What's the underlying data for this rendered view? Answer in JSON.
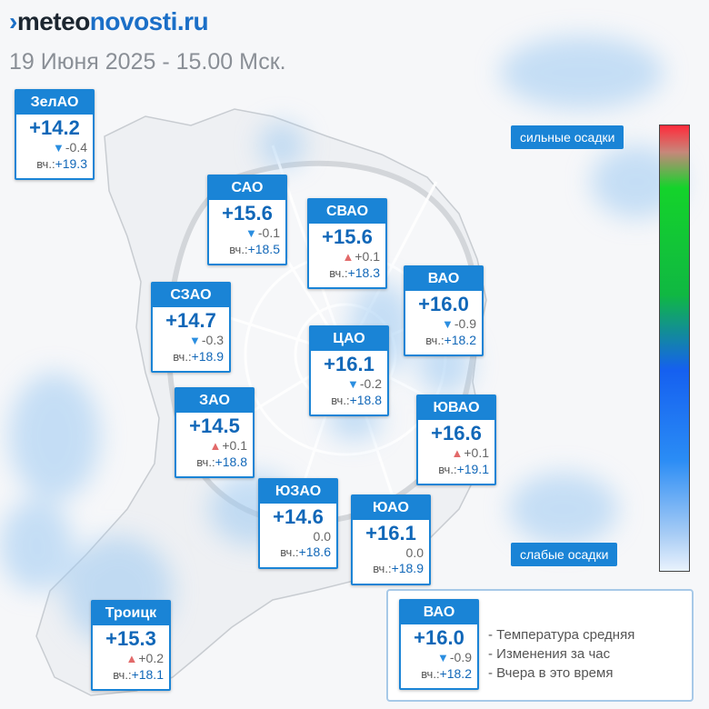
{
  "brand": {
    "prefix": "meteo",
    "suffix": "novosti.ru"
  },
  "date_text": "19 Июня 2025 - 15.00 Мск.",
  "legend": {
    "high": "сильные осадки",
    "low": "слабые осадки"
  },
  "yesterday_prefix": "вч.:",
  "districts": [
    {
      "id": "zelao",
      "name": "ЗелАО",
      "temp": "+14.2",
      "trend": "down",
      "delta": "-0.4",
      "yesterday": "+19.3"
    },
    {
      "id": "sao",
      "name": "САО",
      "temp": "+15.6",
      "trend": "down",
      "delta": "-0.1",
      "yesterday": "+18.5"
    },
    {
      "id": "svao",
      "name": "СВАО",
      "temp": "+15.6",
      "trend": "up",
      "delta": "+0.1",
      "yesterday": "+18.3"
    },
    {
      "id": "vao",
      "name": "ВАО",
      "temp": "+16.0",
      "trend": "down",
      "delta": "-0.9",
      "yesterday": "+18.2"
    },
    {
      "id": "szao",
      "name": "СЗАО",
      "temp": "+14.7",
      "trend": "down",
      "delta": "-0.3",
      "yesterday": "+18.9"
    },
    {
      "id": "cao",
      "name": "ЦАО",
      "temp": "+16.1",
      "trend": "down",
      "delta": "-0.2",
      "yesterday": "+18.8"
    },
    {
      "id": "zao",
      "name": "ЗАО",
      "temp": "+14.5",
      "trend": "up",
      "delta": "+0.1",
      "yesterday": "+18.8"
    },
    {
      "id": "yuvao",
      "name": "ЮВАО",
      "temp": "+16.6",
      "trend": "up",
      "delta": "+0.1",
      "yesterday": "+19.1"
    },
    {
      "id": "yuzao",
      "name": "ЮЗАО",
      "temp": "+14.6",
      "trend": "none",
      "delta": "0.0",
      "yesterday": "+18.6"
    },
    {
      "id": "yuao",
      "name": "ЮАО",
      "temp": "+16.1",
      "trend": "none",
      "delta": "0.0",
      "yesterday": "+18.9"
    },
    {
      "id": "troitsk",
      "name": "Троицк",
      "temp": "+15.3",
      "trend": "up",
      "delta": "+0.2",
      "yesterday": "+18.1"
    }
  ],
  "legend_example": {
    "card": {
      "name": "ВАО",
      "temp": "+16.0",
      "trend": "down",
      "delta": "-0.9",
      "yesterday": "+18.2"
    },
    "explanations": [
      "- Температура средняя",
      "- Изменения за час",
      "- Вчера в это время"
    ]
  }
}
